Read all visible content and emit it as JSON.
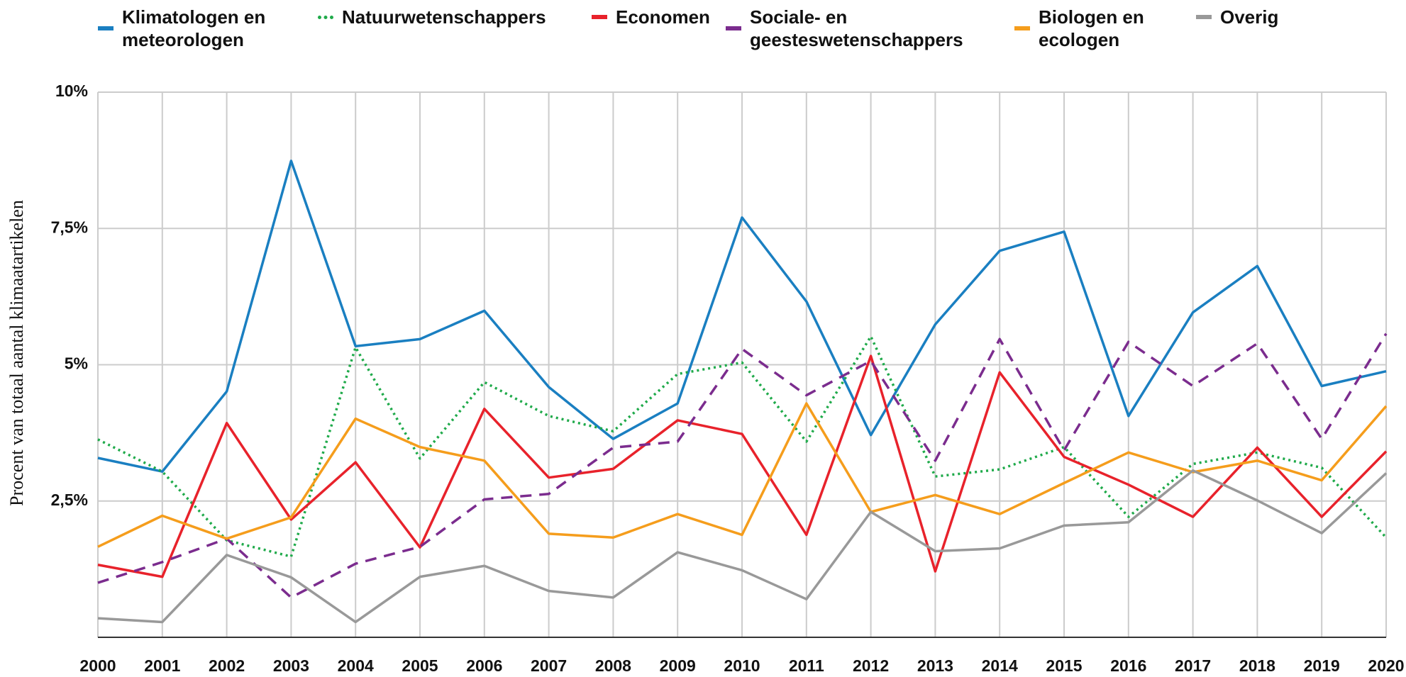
{
  "chart_data": {
    "type": "line",
    "ylabel": "Procent van totaal aantal klimaatartikelen",
    "categories": [
      "2000",
      "2001",
      "2002",
      "2003",
      "2004",
      "2005",
      "2006",
      "2007",
      "2008",
      "2009",
      "2010",
      "2011",
      "2012",
      "2013",
      "2014",
      "2015",
      "2016",
      "2017",
      "2018",
      "2019",
      "2020"
    ],
    "ylim": [
      0,
      10
    ],
    "yticks": [
      {
        "value": 2.5,
        "label": "2,5%"
      },
      {
        "value": 5,
        "label": "5%"
      },
      {
        "value": 7.5,
        "label": "7,5%"
      },
      {
        "value": 10,
        "label": "10%"
      }
    ],
    "grid": true,
    "series": [
      {
        "name": "Klimatologen en meteorologen",
        "color": "#1a7fc1",
        "style": "solid",
        "values": [
          3.29,
          3.04,
          4.51,
          8.74,
          5.34,
          5.47,
          5.99,
          4.59,
          3.64,
          4.29,
          7.7,
          6.16,
          3.71,
          5.74,
          7.09,
          7.44,
          4.06,
          5.96,
          6.81,
          4.61,
          4.88
        ]
      },
      {
        "name": "Natuurwetenschappers",
        "color": "#1faa4a",
        "style": "dotted",
        "values": [
          3.63,
          3.04,
          1.78,
          1.48,
          5.32,
          3.28,
          4.68,
          4.06,
          3.78,
          4.83,
          5.04,
          3.59,
          5.52,
          2.95,
          3.08,
          3.49,
          2.21,
          3.18,
          3.39,
          3.11,
          1.83
        ]
      },
      {
        "name": "Economen",
        "color": "#e8222b",
        "style": "solid",
        "values": [
          1.33,
          1.11,
          3.93,
          2.16,
          3.21,
          1.65,
          4.19,
          2.93,
          3.09,
          3.98,
          3.73,
          1.88,
          5.16,
          1.21,
          4.86,
          3.31,
          2.8,
          2.21,
          3.48,
          2.21,
          3.41
        ]
      },
      {
        "name": "Sociale- en geesteswetenschappers",
        "color": "#7b2c8e",
        "style": "dashed",
        "values": [
          1.0,
          1.38,
          1.81,
          0.73,
          1.35,
          1.66,
          2.53,
          2.63,
          3.48,
          3.59,
          5.29,
          4.44,
          5.07,
          3.24,
          5.47,
          3.43,
          5.42,
          4.61,
          5.39,
          3.64,
          5.57
        ]
      },
      {
        "name": "Biologen en ecologen",
        "color": "#f59d1c",
        "style": "solid",
        "values": [
          1.66,
          2.23,
          1.81,
          2.2,
          4.01,
          3.49,
          3.24,
          1.9,
          1.83,
          2.26,
          1.88,
          4.29,
          2.3,
          2.61,
          2.26,
          2.83,
          3.39,
          3.03,
          3.24,
          2.88,
          4.24
        ]
      },
      {
        "name": "Overig",
        "color": "#999999",
        "style": "solid",
        "values": [
          0.35,
          0.28,
          1.51,
          1.1,
          0.28,
          1.11,
          1.31,
          0.85,
          0.73,
          1.56,
          1.23,
          0.7,
          2.3,
          1.58,
          1.63,
          2.05,
          2.11,
          3.06,
          2.51,
          1.91,
          3.01
        ]
      }
    ]
  }
}
